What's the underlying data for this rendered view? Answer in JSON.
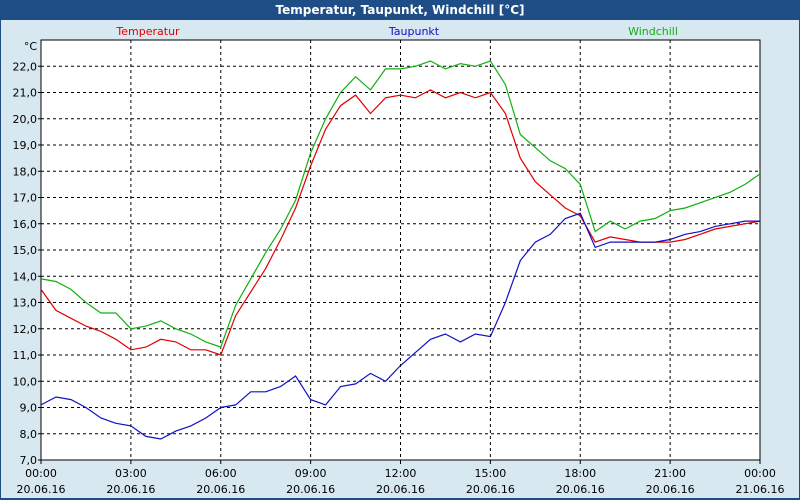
{
  "window": {
    "title": "Temperatur, Taupunkt, Windchill [°C]"
  },
  "chart_data": {
    "type": "line",
    "title": "Temperatur, Taupunkt, Windchill [°C]",
    "ylabel": "°C",
    "xlim_hours": [
      0,
      24
    ],
    "ylim": [
      7.0,
      23.0
    ],
    "grid": true,
    "legend_placement": "top",
    "x_ticks": [
      {
        "time": "00:00",
        "date": "20.06.16"
      },
      {
        "time": "03:00",
        "date": "20.06.16"
      },
      {
        "time": "06:00",
        "date": "20.06.16"
      },
      {
        "time": "09:00",
        "date": "20.06.16"
      },
      {
        "time": "12:00",
        "date": "20.06.16"
      },
      {
        "time": "15:00",
        "date": "20.06.16"
      },
      {
        "time": "18:00",
        "date": "20.06.16"
      },
      {
        "time": "21:00",
        "date": "20.06.16"
      },
      {
        "time": "00:00",
        "date": "21.06.16"
      }
    ],
    "y_ticks": [
      "7,0",
      "8,0",
      "9,0",
      "10,0",
      "11,0",
      "12,0",
      "13,0",
      "14,0",
      "15,0",
      "16,0",
      "17,0",
      "18,0",
      "19,0",
      "20,0",
      "21,0",
      "22,0"
    ],
    "series": [
      {
        "name": "Temperatur",
        "color": "#e00000",
        "x": [
          0,
          0.5,
          1,
          1.5,
          2,
          2.5,
          3,
          3.5,
          4,
          4.5,
          5,
          5.5,
          6,
          6.5,
          7,
          7.5,
          8,
          8.5,
          9,
          9.5,
          10,
          10.5,
          11,
          11.5,
          12,
          12.5,
          13,
          13.5,
          14,
          14.5,
          15,
          15.5,
          16,
          16.5,
          17,
          17.5,
          18,
          18.5,
          19,
          19.5,
          20,
          20.5,
          21,
          21.5,
          22,
          22.5,
          23,
          23.5,
          24
        ],
        "values": [
          13.5,
          12.7,
          12.4,
          12.1,
          11.9,
          11.6,
          11.2,
          11.3,
          11.6,
          11.5,
          11.2,
          11.2,
          11.0,
          12.5,
          13.4,
          14.3,
          15.4,
          16.6,
          18.2,
          19.6,
          20.5,
          20.9,
          20.2,
          20.8,
          20.9,
          20.8,
          21.1,
          20.8,
          21.0,
          20.8,
          21.0,
          20.2,
          18.5,
          17.6,
          17.1,
          16.6,
          16.3,
          15.3,
          15.5,
          15.4,
          15.3,
          15.3,
          15.3,
          15.4,
          15.6,
          15.8,
          15.9,
          16.0,
          16.1
        ]
      },
      {
        "name": "Taupunkt",
        "color": "#1010c8",
        "x": [
          0,
          0.5,
          1,
          1.5,
          2,
          2.5,
          3,
          3.5,
          4,
          4.5,
          5,
          5.5,
          6,
          6.5,
          7,
          7.5,
          8,
          8.5,
          9,
          9.5,
          10,
          10.5,
          11,
          11.5,
          12,
          12.5,
          13,
          13.5,
          14,
          14.5,
          15,
          15.5,
          16,
          16.5,
          17,
          17.5,
          18,
          18.5,
          19,
          19.5,
          20,
          20.5,
          21,
          21.5,
          22,
          22.5,
          23,
          23.5,
          24
        ],
        "values": [
          9.1,
          9.4,
          9.3,
          9.0,
          8.6,
          8.4,
          8.3,
          7.9,
          7.8,
          8.1,
          8.3,
          8.6,
          9.0,
          9.1,
          9.6,
          9.6,
          9.8,
          10.2,
          9.3,
          9.1,
          9.8,
          9.9,
          10.3,
          10.0,
          10.6,
          11.1,
          11.6,
          11.8,
          11.5,
          11.8,
          11.7,
          13.0,
          14.6,
          15.3,
          15.6,
          16.2,
          16.4,
          15.1,
          15.3,
          15.3,
          15.3,
          15.3,
          15.4,
          15.6,
          15.7,
          15.9,
          16.0,
          16.1,
          16.1
        ]
      },
      {
        "name": "Windchill",
        "color": "#10b010",
        "x": [
          0,
          0.5,
          1,
          1.5,
          2,
          2.5,
          3,
          3.5,
          4,
          4.5,
          5,
          5.5,
          6,
          6.5,
          7,
          7.5,
          8,
          8.5,
          9,
          9.5,
          10,
          10.5,
          11,
          11.5,
          12,
          12.5,
          13,
          13.5,
          14,
          14.5,
          15,
          15.5,
          16,
          16.5,
          17,
          17.5,
          18,
          18.5,
          19,
          19.5,
          20,
          20.5,
          21,
          21.5,
          22,
          22.5,
          23,
          23.5,
          24
        ],
        "values": [
          13.9,
          13.8,
          13.5,
          13.0,
          12.6,
          12.6,
          12.0,
          12.1,
          12.3,
          12.0,
          11.8,
          11.5,
          11.3,
          12.9,
          13.9,
          14.9,
          15.8,
          16.9,
          18.7,
          20.0,
          21.0,
          21.6,
          21.1,
          21.9,
          21.9,
          22.0,
          22.2,
          21.9,
          22.1,
          22.0,
          22.2,
          21.3,
          19.4,
          18.9,
          18.4,
          18.1,
          17.5,
          15.7,
          16.1,
          15.8,
          16.1,
          16.2,
          16.5,
          16.6,
          16.8,
          17.0,
          17.2,
          17.5,
          17.9
        ]
      }
    ]
  }
}
